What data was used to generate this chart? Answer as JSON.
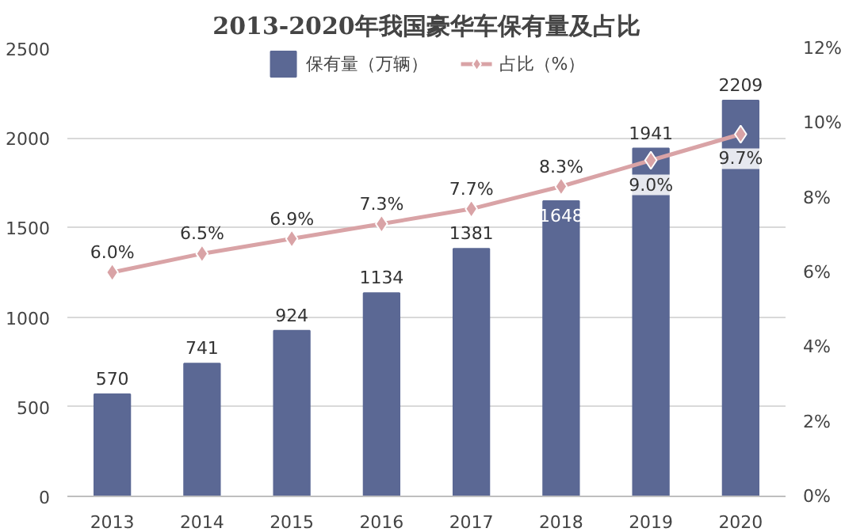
{
  "chart_data": {
    "type": "bar",
    "title": "2013-2020年我国豪华车保有量及占比",
    "categories": [
      "2013",
      "2014",
      "2015",
      "2016",
      "2017",
      "2018",
      "2019",
      "2020"
    ],
    "series": [
      {
        "name": "保有量（万辆）",
        "color": "#5b6894",
        "values": [
          570,
          741,
          924,
          1134,
          1381,
          1648,
          1941,
          2209
        ],
        "value_labels": [
          "570",
          "741",
          "924",
          "1134",
          "1381",
          "1648",
          "1941",
          "2209"
        ]
      },
      {
        "name": "占比（%）",
        "type": "line",
        "axis": "y2",
        "color": "#d9a3a6",
        "marker": "diamond",
        "values": [
          6.0,
          6.5,
          6.9,
          7.3,
          7.7,
          8.3,
          9.0,
          9.7
        ],
        "value_labels": [
          "6.0%",
          "6.5%",
          "6.9%",
          "7.3%",
          "7.7%",
          "8.3%",
          "9.0%",
          "9.7%"
        ]
      }
    ],
    "ylim": [
      0,
      2500
    ],
    "yticks": [
      0,
      500,
      1000,
      1500,
      2000,
      2500
    ],
    "y2lim": [
      0,
      12
    ],
    "y2ticks": [
      {
        "value": 0,
        "label": "0%"
      },
      {
        "value": 2,
        "label": "2%"
      },
      {
        "value": 4,
        "label": "4%"
      },
      {
        "value": 6,
        "label": "6%"
      },
      {
        "value": 8,
        "label": "8%"
      },
      {
        "value": 10,
        "label": "10%"
      },
      {
        "value": 12,
        "label": "12%"
      }
    ],
    "grid": "y",
    "legend": "top"
  }
}
